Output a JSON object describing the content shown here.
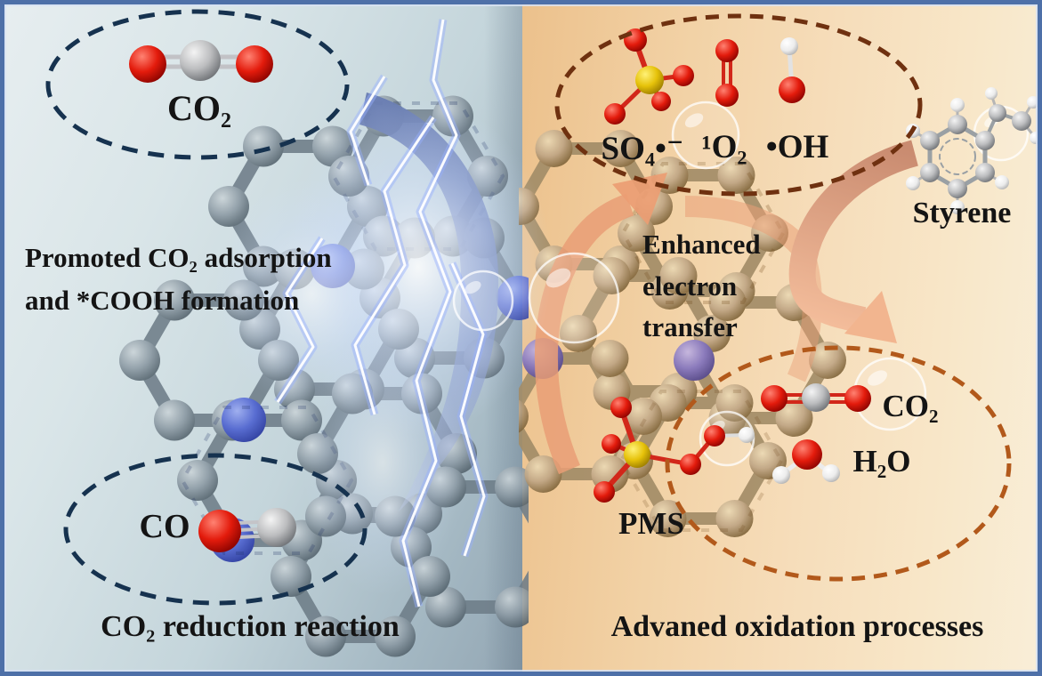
{
  "figure": {
    "left": {
      "co2_label": "CO₂",
      "adsorption_line1": "Promoted CO₂ adsorption",
      "adsorption_line2": "and *COOH formation",
      "co_label": "CO",
      "caption": "CO₂ reduction reaction"
    },
    "right": {
      "sulfate_radical_label": "SO₄•⁻",
      "singlet_oxygen_label": "¹O₂",
      "hydroxyl_radical_label": "•OH",
      "styrene_label": "Styrene",
      "enhanced_line1": "Enhanced",
      "enhanced_line2": "electron",
      "enhanced_line3": "transfer",
      "pms_label": "PMS",
      "co2_label": "CO₂",
      "h2o_label": "H₂O",
      "caption": "Advaned oxidation processes"
    },
    "colors": {
      "frame_blue": "#4e70a8",
      "left_dash": "#16324f",
      "right_dash_dark": "#6f3110",
      "right_dash_orange": "#b2591b",
      "arrow_blue": "#7687b5",
      "arrow_salmon": "#e8a17d",
      "oxygen_red": "#d81f10",
      "sulfur_yellow": "#e2c10a",
      "nitrogen_blue": "#4a5fd0",
      "nitrogen_purple": "#8273bd"
    }
  }
}
